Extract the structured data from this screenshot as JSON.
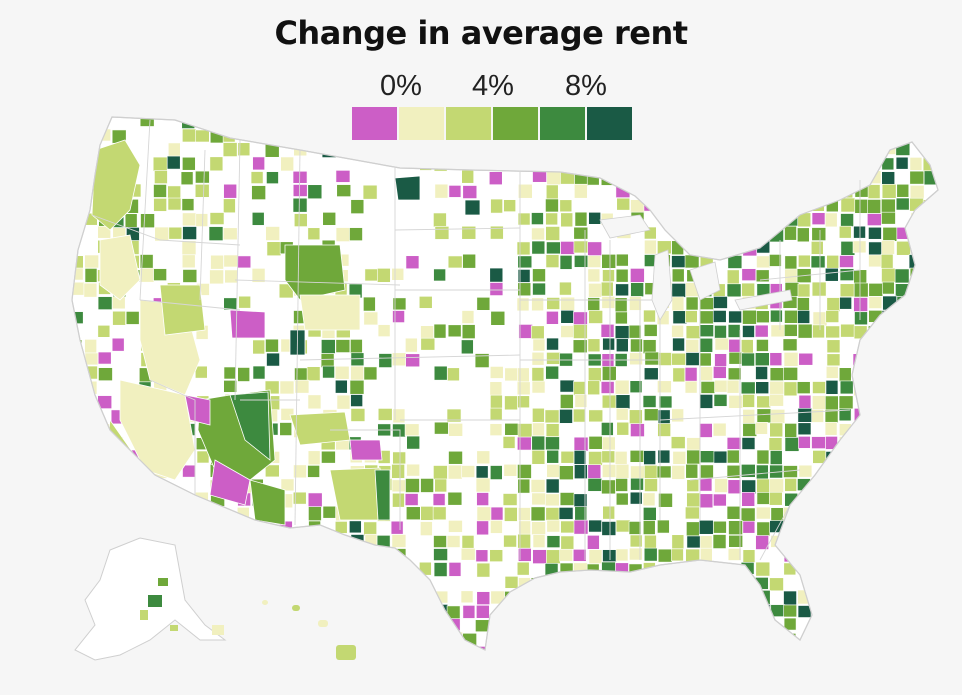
{
  "title": "Change in average rent",
  "legend": {
    "labels": [
      "0%",
      "4%",
      "8%"
    ],
    "colors": [
      "#cc5ec6",
      "#f1f0bf",
      "#c3d872",
      "#6fa83a",
      "#3d8a3f",
      "#1a5a45"
    ]
  },
  "map_colors": {
    "land": "#ffffff",
    "border": "#d6d6d6",
    "water": "#f6f6f6"
  }
}
